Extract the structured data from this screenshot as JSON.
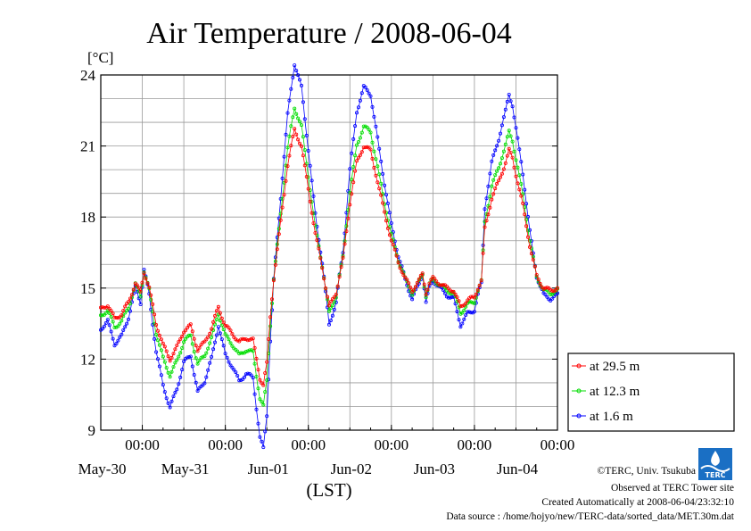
{
  "chart_data": {
    "type": "line",
    "title": "Air Temperature / 2008-06-04",
    "unit_label": "[°C]",
    "xlabel": "(LST)",
    "ylim": [
      9,
      24
    ],
    "y_ticks": [
      "9",
      "12",
      "15",
      "18",
      "21",
      "24"
    ],
    "x_range_hours": [
      -132,
      0
    ],
    "x_ticks": [
      {
        "time": "00:00",
        "date": "May-30",
        "hour": -120
      },
      {
        "time": "00:00",
        "date": "May-31",
        "hour": -96
      },
      {
        "time": "00:00",
        "date": "Jun-01",
        "hour": -72
      },
      {
        "time": "00:00",
        "date": "Jun-02",
        "hour": -48
      },
      {
        "time": "00:00",
        "date": "Jun-03",
        "hour": -24
      },
      {
        "time": "00:00",
        "date": "Jun-04",
        "hour": 0
      }
    ],
    "grid": true,
    "legend_position": "right",
    "series": [
      {
        "name": "at 29.5 m",
        "color": "#ff0000",
        "marker": "circle",
        "offset": 0.0
      },
      {
        "name": "at 12.3 m",
        "color": "#00dd00",
        "marker": "circle",
        "offset": 0.15
      },
      {
        "name": "at 1.6 m",
        "color": "#0000ff",
        "marker": "circle",
        "offset": 0.45
      }
    ],
    "base_points": [
      [
        -132,
        14.1
      ],
      [
        -130,
        14.3
      ],
      [
        -128,
        13.7
      ],
      [
        -126,
        13.9
      ],
      [
        -124,
        14.4
      ],
      [
        -122,
        15.2
      ],
      [
        -120.5,
        14.8
      ],
      [
        -119.5,
        15.7
      ],
      [
        -118,
        15.0
      ],
      [
        -116,
        13.5
      ],
      [
        -114,
        12.6
      ],
      [
        -112,
        12.0
      ],
      [
        -110,
        12.5
      ],
      [
        -108,
        13.2
      ],
      [
        -106,
        13.4
      ],
      [
        -104,
        12.4
      ],
      [
        -102,
        12.7
      ],
      [
        -100,
        13.3
      ],
      [
        -98,
        14.2
      ],
      [
        -96,
        13.4
      ],
      [
        -94,
        13.1
      ],
      [
        -92,
        12.7
      ],
      [
        -90,
        12.9
      ],
      [
        -88,
        12.8
      ],
      [
        -86,
        11.2
      ],
      [
        -85,
        10.9
      ],
      [
        -84,
        11.8
      ],
      [
        -83,
        13.8
      ],
      [
        -82,
        15.4
      ],
      [
        -80,
        17.8
      ],
      [
        -78,
        20.2
      ],
      [
        -76,
        21.7
      ],
      [
        -74,
        21.0
      ],
      [
        -72,
        19.2
      ],
      [
        -70,
        17.3
      ],
      [
        -68,
        15.9
      ],
      [
        -66,
        14.2
      ],
      [
        -64,
        14.8
      ],
      [
        -62,
        16.2
      ],
      [
        -60,
        18.6
      ],
      [
        -58,
        20.3
      ],
      [
        -56,
        21.0
      ],
      [
        -54,
        20.8
      ],
      [
        -52,
        19.5
      ],
      [
        -50,
        18.2
      ],
      [
        -48,
        17.0
      ],
      [
        -46,
        16.1
      ],
      [
        -44,
        15.4
      ],
      [
        -42,
        14.9
      ],
      [
        -40,
        15.3
      ],
      [
        -39,
        15.6
      ],
      [
        -38,
        14.8
      ],
      [
        -37,
        15.2
      ],
      [
        -36,
        15.4
      ],
      [
        -34,
        15.2
      ],
      [
        -32,
        15.0
      ],
      [
        -30,
        14.9
      ],
      [
        -28,
        14.2
      ],
      [
        -26,
        14.5
      ],
      [
        -24,
        14.6
      ],
      [
        -23,
        15.0
      ],
      [
        -22,
        15.3
      ],
      [
        -21,
        17.5
      ],
      [
        -19,
        18.8
      ],
      [
        -17,
        19.5
      ],
      [
        -15,
        20.3
      ],
      [
        -14,
        20.8
      ],
      [
        -13,
        20.5
      ],
      [
        -12,
        19.8
      ],
      [
        -10,
        18.5
      ],
      [
        -8,
        16.8
      ],
      [
        -6,
        15.5
      ],
      [
        -4,
        15.0
      ],
      [
        -2,
        14.9
      ],
      [
        0,
        15.0
      ]
    ]
  },
  "credits": {
    "copyright": "©TERC, Univ. Tsukuba",
    "site": "Observed at TERC Tower site",
    "created": "Created Automatically at 2008-06-04/23:32:10",
    "source": "Data source : /home/hojyo/new/TERC-data/sorted_data/MET.30m.dat",
    "logo_text": "TERC"
  }
}
